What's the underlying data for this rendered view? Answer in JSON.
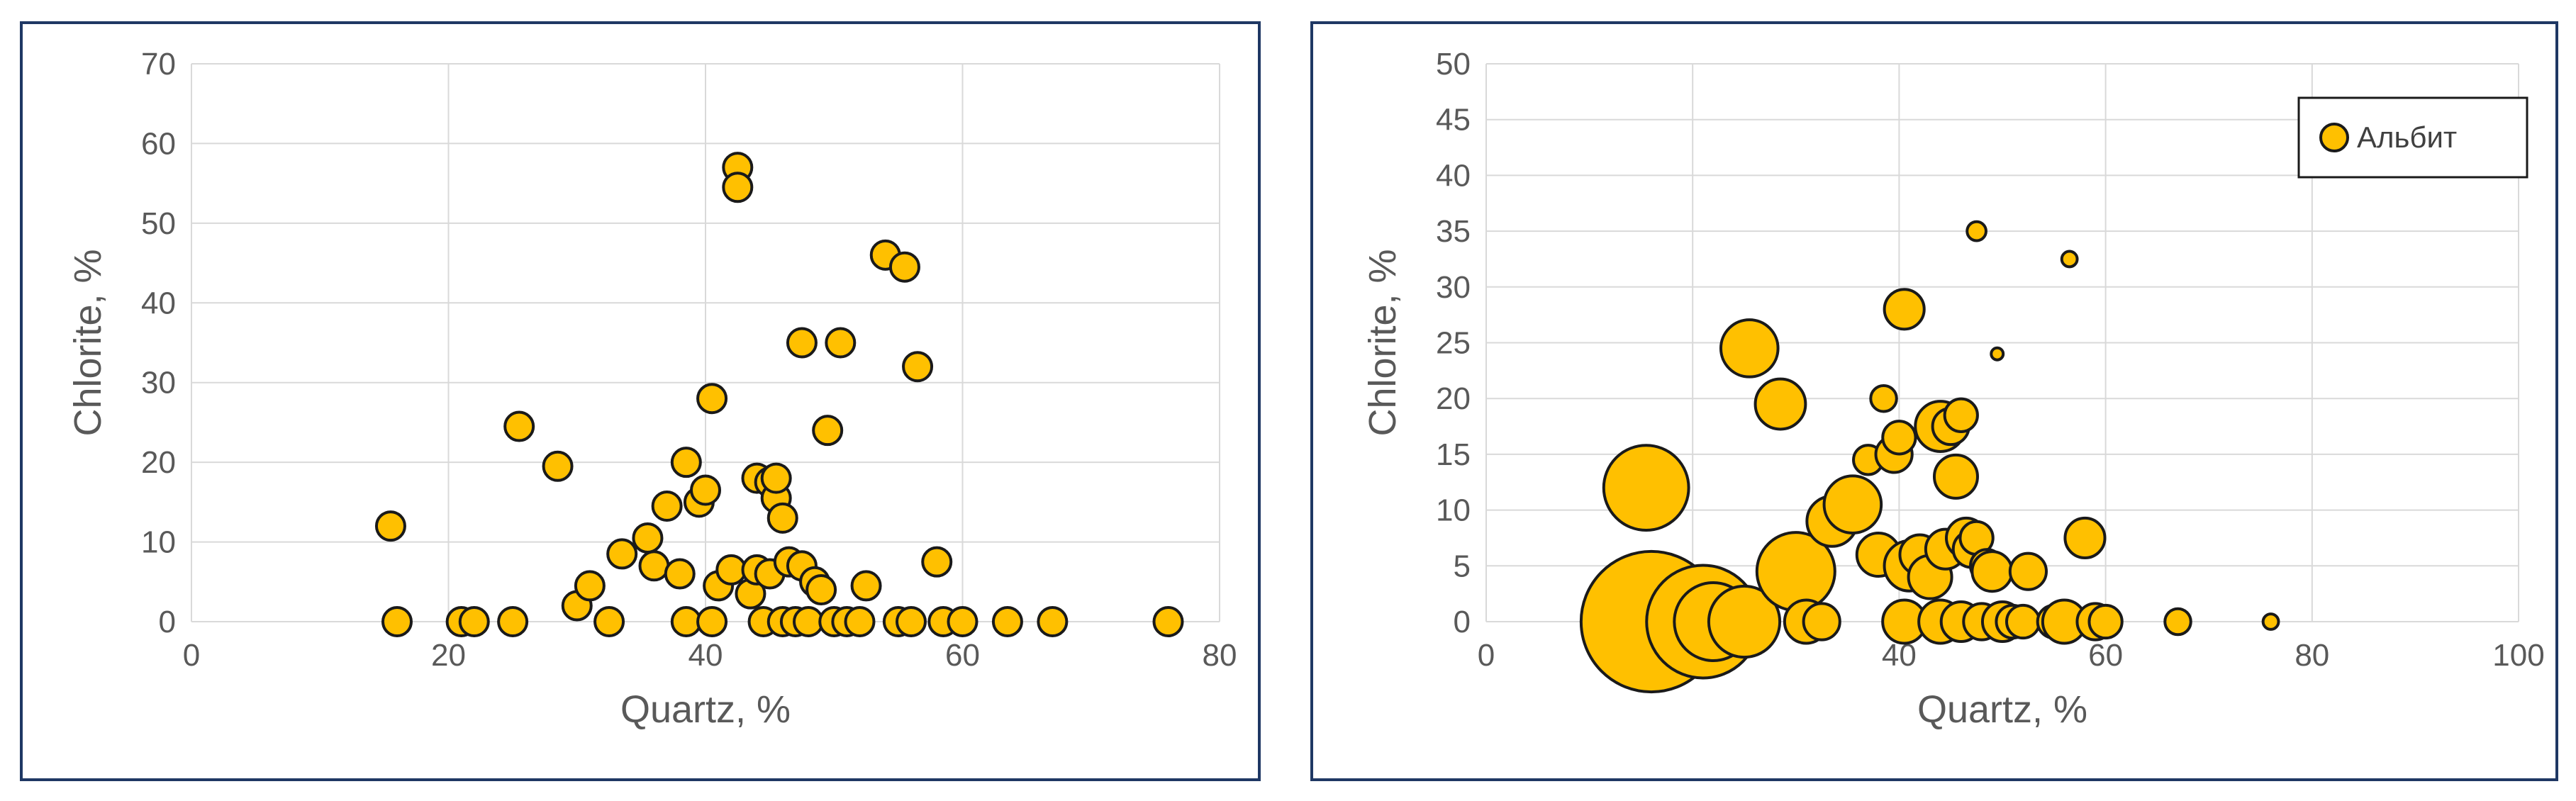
{
  "chart_data": [
    {
      "type": "scatter",
      "xlabel": "Quartz, %",
      "ylabel": "Chlorite, %",
      "xlim": [
        0,
        80
      ],
      "ylim": [
        0,
        70
      ],
      "xticks": [
        0,
        20,
        40,
        60,
        80
      ],
      "yticks": [
        0,
        10,
        20,
        30,
        40,
        50,
        60,
        70
      ],
      "grid": true,
      "marker_color": "#FFC000",
      "marker_edge": "#1a1a1a",
      "series": [
        {
          "x": [
            15.5,
            16,
            21,
            22,
            25,
            25.5,
            28.5,
            30,
            31,
            32.5,
            33.5,
            35.5,
            36,
            37,
            38,
            38.5,
            38.5,
            39.5,
            40,
            40.5,
            40.5,
            41,
            42,
            42.5,
            42.5,
            43.5,
            44,
            44,
            44.5,
            45,
            45,
            45.5,
            45.5,
            46,
            46,
            46.5,
            47,
            47.5,
            47.5,
            48,
            48.5,
            49,
            49.5,
            50,
            50.5,
            51,
            52,
            52.5,
            54,
            55,
            55.5,
            56,
            56.5,
            58,
            58.5,
            60,
            63.5,
            67,
            76
          ],
          "y": [
            12,
            0,
            0,
            0,
            0,
            24.5,
            19.5,
            2,
            4.5,
            0,
            8.5,
            10.5,
            7,
            14.5,
            6,
            0,
            20,
            15,
            16.5,
            28,
            0,
            4.5,
            6.5,
            57,
            54.5,
            3.5,
            6.5,
            18,
            0,
            6,
            17.5,
            15.5,
            18,
            13,
            0,
            7.5,
            0,
            7,
            35,
            0,
            5,
            4,
            24,
            0,
            35,
            0,
            0,
            4.5,
            46,
            0,
            44.5,
            0,
            32,
            7.5,
            0,
            0,
            0,
            0,
            0
          ]
        }
      ]
    },
    {
      "type": "bubble",
      "xlabel": "Quartz, %",
      "ylabel": "Chlorite, %",
      "xlim": [
        0,
        100
      ],
      "ylim": [
        0,
        50
      ],
      "xticks": [
        0,
        20,
        40,
        60,
        80,
        100
      ],
      "yticks": [
        0,
        5,
        10,
        15,
        20,
        25,
        30,
        35,
        40,
        45,
        50
      ],
      "grid": true,
      "legend": {
        "position": "top-right",
        "entries": [
          "Альбит"
        ]
      },
      "marker_color": "#FFC000",
      "marker_edge": "#1a1a1a",
      "series": [
        {
          "name": "Альбит",
          "x": [
            15.5,
            16,
            21,
            22,
            25,
            25.5,
            28.5,
            30,
            31,
            32.5,
            33.5,
            35.5,
            37,
            38,
            38.5,
            39.5,
            40,
            40.5,
            40.5,
            41,
            42,
            43,
            44,
            44,
            44.5,
            45,
            45.5,
            46,
            46,
            46.5,
            47,
            47.5,
            47.5,
            48,
            48.5,
            49,
            49.5,
            50,
            51,
            52,
            52.5,
            55,
            56,
            56.5,
            58,
            59,
            60,
            67,
            76
          ],
          "y": [
            12,
            0,
            0,
            0,
            0,
            24.5,
            19.5,
            4.5,
            0,
            0,
            9,
            10.5,
            14.5,
            6,
            20,
            15,
            16.5,
            28,
            0,
            5,
            6,
            4,
            17.5,
            0,
            6.5,
            17.5,
            13,
            0,
            18.5,
            7.5,
            6.5,
            7.5,
            35,
            0,
            5,
            4.5,
            24,
            0,
            0,
            0,
            4.5,
            0,
            0,
            32.5,
            7.5,
            0,
            0,
            0,
            0
          ],
          "size": [
            22,
            38,
            30,
            20,
            18,
            14,
            12,
            20,
            10,
            8,
            12,
            14,
            6,
            10,
            5,
            8,
            7,
            9,
            10,
            12,
            9,
            10,
            12,
            10,
            9,
            8,
            10,
            9,
            7,
            9,
            8,
            7,
            3,
            8,
            7,
            9,
            1,
            9,
            7,
            7,
            8,
            7,
            10,
            2,
            9,
            8,
            7,
            5,
            2
          ]
        }
      ]
    }
  ]
}
